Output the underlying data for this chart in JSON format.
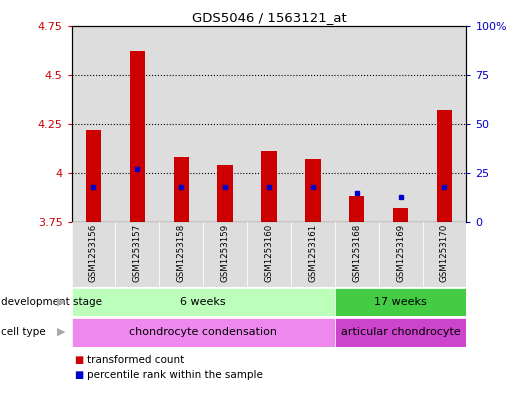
{
  "title": "GDS5046 / 1563121_at",
  "samples": [
    "GSM1253156",
    "GSM1253157",
    "GSM1253158",
    "GSM1253159",
    "GSM1253160",
    "GSM1253161",
    "GSM1253168",
    "GSM1253169",
    "GSM1253170"
  ],
  "transformed_count": [
    4.22,
    4.62,
    4.08,
    4.04,
    4.11,
    4.07,
    3.88,
    3.82,
    4.32
  ],
  "percentile_rank": [
    18,
    27,
    18,
    18,
    18,
    18,
    15,
    13,
    18
  ],
  "ylim_left": [
    3.75,
    4.75
  ],
  "ylim_right": [
    0,
    100
  ],
  "yticks_left": [
    3.75,
    4.0,
    4.25,
    4.5,
    4.75
  ],
  "ytick_labels_left": [
    "3.75",
    "4",
    "4.25",
    "4.5",
    "4.75"
  ],
  "yticks_right": [
    0,
    25,
    50,
    75,
    100
  ],
  "ytick_labels_right": [
    "0",
    "25",
    "50",
    "75",
    "100%"
  ],
  "bar_bottom": 3.75,
  "dev_stage_groups": [
    {
      "label": "6 weeks",
      "start": 0,
      "end": 5,
      "color": "#bbffbb"
    },
    {
      "label": "17 weeks",
      "start": 6,
      "end": 8,
      "color": "#44cc44"
    }
  ],
  "cell_type_groups": [
    {
      "label": "chondrocyte condensation",
      "start": 0,
      "end": 5,
      "color": "#ee88ee"
    },
    {
      "label": "articular chondrocyte",
      "start": 6,
      "end": 8,
      "color": "#cc44cc"
    }
  ],
  "dev_stage_label": "development stage",
  "cell_type_label": "cell type",
  "legend_entries": [
    "transformed count",
    "percentile rank within the sample"
  ],
  "legend_colors": [
    "#cc0000",
    "#0000cc"
  ],
  "bar_color": "#cc0000",
  "percentile_color": "#0000cc",
  "fig_bg_color": "#ffffff",
  "plot_bg_color": "#ffffff",
  "grid_color": "#000000",
  "right_axis_color": "#0000cc",
  "left_axis_color": "#cc0000",
  "col_bg_color": "#dddddd",
  "bar_width": 0.35
}
